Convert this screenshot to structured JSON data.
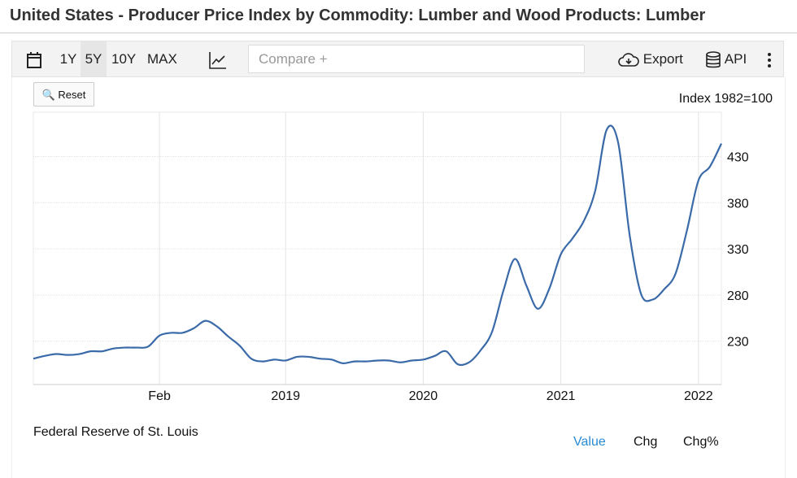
{
  "title": "United States - Producer Price Index by Commodity: Lumber and Wood Products: Lumber",
  "toolbar": {
    "ranges": [
      "1Y",
      "5Y",
      "10Y",
      "MAX"
    ],
    "selected_range": "5Y",
    "compare_placeholder": "Compare +",
    "export_label": "Export",
    "api_label": "API"
  },
  "reset_label": "Reset",
  "source": "Federal Reserve of St. Louis",
  "bottom_tabs": {
    "value": "Value",
    "chg": "Chg",
    "chg_pct": "Chg%",
    "active_color": "#2a8ad4"
  },
  "chart_data": {
    "type": "line",
    "unit_label": "Index 1982=100",
    "x_start": "2017-03",
    "x_step": "month",
    "x_ticks": [
      {
        "date": "2018-02",
        "label": "Feb"
      },
      {
        "date": "2019-01",
        "label": "2019"
      },
      {
        "date": "2020-01",
        "label": "2020"
      },
      {
        "date": "2021-01",
        "label": "2021"
      },
      {
        "date": "2022-01",
        "label": "2022"
      }
    ],
    "y_ticks": [
      230,
      280,
      330,
      380,
      430
    ],
    "ylim": [
      183,
      478
    ],
    "y_axis_side": "right",
    "grid": true,
    "line_color": "#3a6aa8",
    "values": [
      211,
      214,
      216,
      215,
      216,
      219,
      219,
      222,
      223,
      223,
      224,
      236,
      239,
      239,
      244,
      252,
      246,
      235,
      225,
      211,
      208,
      210,
      209,
      213,
      213,
      211,
      210,
      206,
      208,
      208,
      209,
      209,
      207,
      209,
      210,
      214,
      219,
      205,
      207,
      220,
      240,
      285,
      319,
      290,
      265,
      287,
      324,
      341,
      360,
      393,
      459,
      445,
      345,
      281,
      275,
      286,
      303,
      350,
      404,
      419,
      444
    ]
  }
}
